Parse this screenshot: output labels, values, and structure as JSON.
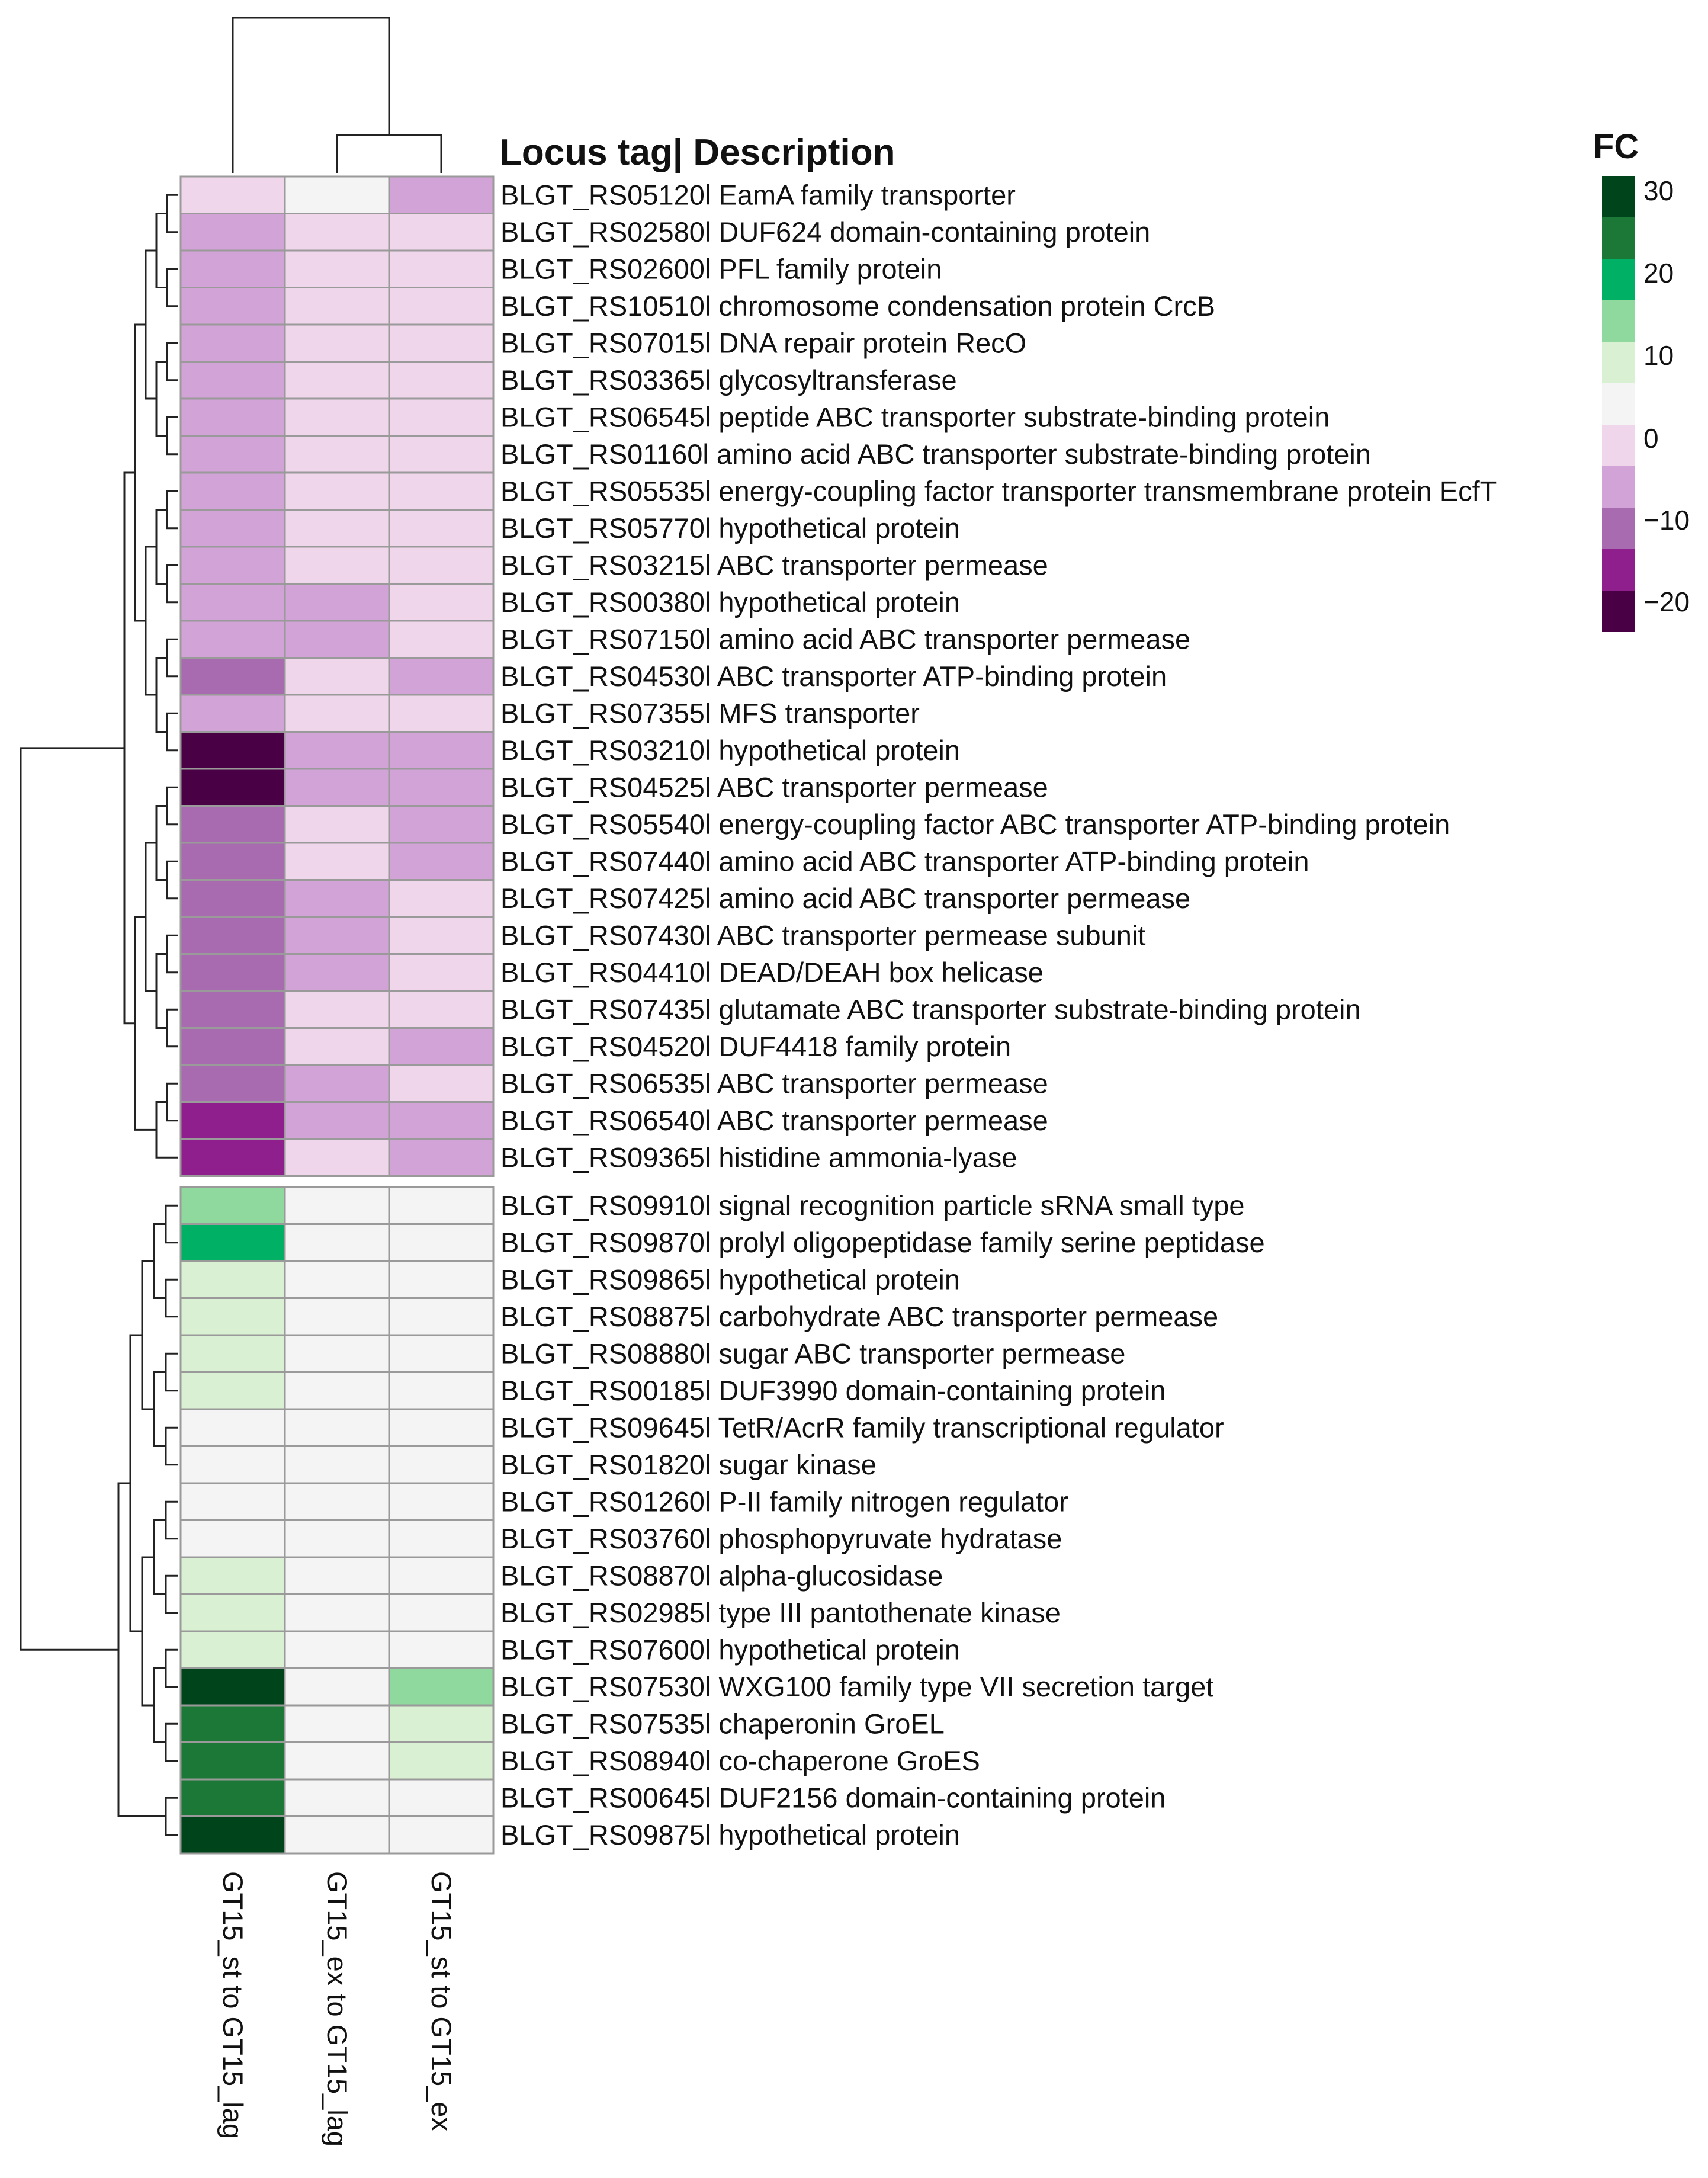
{
  "chart_data": {
    "type": "heatmap",
    "title": "Locus tag| Description",
    "legend": {
      "title": "FC",
      "ticks": [
        "30",
        "20",
        "10",
        "0",
        "−10",
        "−20"
      ],
      "colors": [
        "#00441b",
        "#1b7837",
        "#00b065",
        "#8fd89e",
        "#d9f0d3",
        "#f4f4f4",
        "#f0d6ea",
        "#d2a3d6",
        "#a86bb0",
        "#8e1f8c",
        "#4a0045"
      ]
    },
    "columns": [
      "GT15_st to GT15_lag",
      "GT15_ex to GT15_lag",
      "GT15_st to GT15_ex"
    ],
    "clusters": [
      {
        "rows": [
          {
            "label": "BLGT_RS05120l EamA family transporter",
            "values": [
              -2,
              0,
              -7
            ]
          },
          {
            "label": "BLGT_RS02580l DUF624 domain-containing protein",
            "values": [
              -7,
              -2,
              -2
            ]
          },
          {
            "label": "BLGT_RS02600l PFL family protein",
            "values": [
              -7,
              -2,
              -2
            ]
          },
          {
            "label": "BLGT_RS10510l chromosome condensation protein CrcB",
            "values": [
              -7,
              -2,
              -2
            ]
          },
          {
            "label": "BLGT_RS07015l DNA repair protein RecO",
            "values": [
              -7,
              -2,
              -2
            ]
          },
          {
            "label": "BLGT_RS03365l glycosyltransferase",
            "values": [
              -7,
              -2,
              -2
            ]
          },
          {
            "label": "BLGT_RS06545l peptide ABC transporter substrate-binding protein",
            "values": [
              -7,
              -2,
              -2
            ]
          },
          {
            "label": "BLGT_RS01160l amino acid ABC transporter substrate-binding protein",
            "values": [
              -7,
              -2,
              -2
            ]
          },
          {
            "label": "BLGT_RS05535l energy-coupling factor transporter transmembrane protein EcfT",
            "values": [
              -7,
              -2,
              -2
            ]
          },
          {
            "label": "BLGT_RS05770l hypothetical protein",
            "values": [
              -7,
              -2,
              -2
            ]
          },
          {
            "label": "BLGT_RS03215l ABC transporter permease",
            "values": [
              -7,
              -2,
              -2
            ]
          },
          {
            "label": "BLGT_RS00380l hypothetical protein",
            "values": [
              -7,
              -7,
              -2
            ]
          },
          {
            "label": "BLGT_RS07150l amino acid ABC transporter permease",
            "values": [
              -7,
              -7,
              -2
            ]
          },
          {
            "label": "BLGT_RS04530l ABC transporter ATP-binding protein",
            "values": [
              -12,
              -2,
              -7
            ]
          },
          {
            "label": "BLGT_RS07355l MFS transporter",
            "values": [
              -7,
              -2,
              -2
            ]
          },
          {
            "label": "BLGT_RS03210l hypothetical protein",
            "values": [
              -22,
              -7,
              -7
            ]
          },
          {
            "label": "BLGT_RS04525l ABC transporter permease",
            "values": [
              -22,
              -7,
              -7
            ]
          },
          {
            "label": "BLGT_RS05540l energy-coupling factor ABC transporter ATP-binding protein",
            "values": [
              -12,
              -2,
              -7
            ]
          },
          {
            "label": "BLGT_RS07440l amino acid ABC transporter ATP-binding protein",
            "values": [
              -12,
              -2,
              -7
            ]
          },
          {
            "label": "BLGT_RS07425l amino acid ABC transporter permease",
            "values": [
              -12,
              -7,
              -2
            ]
          },
          {
            "label": "BLGT_RS07430l ABC transporter permease subunit",
            "values": [
              -12,
              -7,
              -2
            ]
          },
          {
            "label": "BLGT_RS04410l DEAD/DEAH box helicase",
            "values": [
              -12,
              -7,
              -2
            ]
          },
          {
            "label": "BLGT_RS07435l glutamate ABC transporter substrate-binding protein",
            "values": [
              -12,
              -2,
              -2
            ]
          },
          {
            "label": "BLGT_RS04520l DUF4418 family protein",
            "values": [
              -12,
              -2,
              -7
            ]
          },
          {
            "label": "BLGT_RS06535l ABC transporter permease",
            "values": [
              -12,
              -7,
              -2
            ]
          },
          {
            "label": "BLGT_RS06540l ABC transporter permease",
            "values": [
              -17,
              -7,
              -7
            ]
          },
          {
            "label": "BLGT_RS09365l histidine ammonia-lyase",
            "values": [
              -17,
              -2,
              -7
            ]
          }
        ]
      },
      {
        "rows": [
          {
            "label": "BLGT_RS09910l signal recognition particle sRNA small type",
            "values": [
              13,
              0,
              0
            ]
          },
          {
            "label": "BLGT_RS09870l prolyl oligopeptidase family serine peptidase",
            "values": [
              18,
              0,
              0
            ]
          },
          {
            "label": "BLGT_RS09865l hypothetical protein",
            "values": [
              7,
              0,
              0
            ]
          },
          {
            "label": "BLGT_RS08875l carbohydrate ABC transporter permease",
            "values": [
              7,
              0,
              0
            ]
          },
          {
            "label": "BLGT_RS08880l sugar ABC transporter permease",
            "values": [
              7,
              0,
              0
            ]
          },
          {
            "label": "BLGT_RS00185l DUF3990 domain-containing protein",
            "values": [
              7,
              0,
              0
            ]
          },
          {
            "label": "BLGT_RS09645l TetR/AcrR family transcriptional regulator",
            "values": [
              1,
              0,
              0
            ]
          },
          {
            "label": "BLGT_RS01820l sugar kinase",
            "values": [
              1,
              0,
              0
            ]
          },
          {
            "label": "BLGT_RS01260l P-II family nitrogen regulator",
            "values": [
              1,
              0,
              0
            ]
          },
          {
            "label": "BLGT_RS03760l phosphopyruvate hydratase",
            "values": [
              1,
              0,
              0
            ]
          },
          {
            "label": "BLGT_RS08870l alpha-glucosidase",
            "values": [
              7,
              0,
              0
            ]
          },
          {
            "label": "BLGT_RS02985l type III pantothenate kinase",
            "values": [
              7,
              0,
              0
            ]
          },
          {
            "label": "BLGT_RS07600l hypothetical protein",
            "values": [
              7,
              0,
              0
            ]
          },
          {
            "label": "BLGT_RS07530l WXG100 family type VII secretion target",
            "values": [
              30,
              0,
              13
            ]
          },
          {
            "label": "BLGT_RS07535l chaperonin GroEL",
            "values": [
              23,
              0,
              7
            ]
          },
          {
            "label": "BLGT_RS08940l co-chaperone GroES",
            "values": [
              23,
              0,
              7
            ]
          },
          {
            "label": "BLGT_RS00645l DUF2156 domain-containing protein",
            "values": [
              23,
              0,
              0
            ]
          },
          {
            "label": "BLGT_RS09875l hypothetical protein",
            "values": [
              30,
              0,
              0
            ]
          }
        ]
      }
    ]
  }
}
